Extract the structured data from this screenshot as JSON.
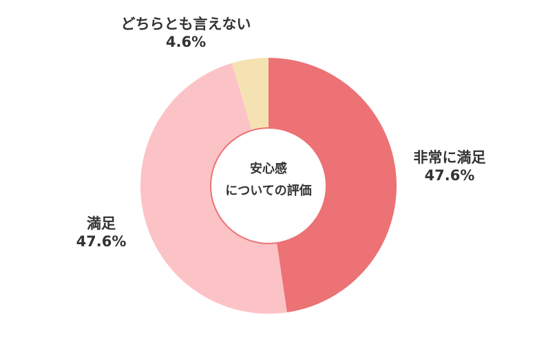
{
  "chart_data": {
    "type": "pie",
    "variant": "donut",
    "center_text": [
      "安心感",
      "についての評価"
    ],
    "slices": [
      {
        "label": "非常に満足",
        "value": 47.6,
        "value_label": "47.6%",
        "color": "#ec7275"
      },
      {
        "label": "満足",
        "value": 47.6,
        "value_label": "47.6%",
        "color": "#fcc3c6"
      },
      {
        "label": "どちらとも言えない",
        "value": 4.6,
        "value_label": "4.6%",
        "color": "#f5e2b3"
      }
    ],
    "legend": "none",
    "start": "top, clockwise"
  }
}
